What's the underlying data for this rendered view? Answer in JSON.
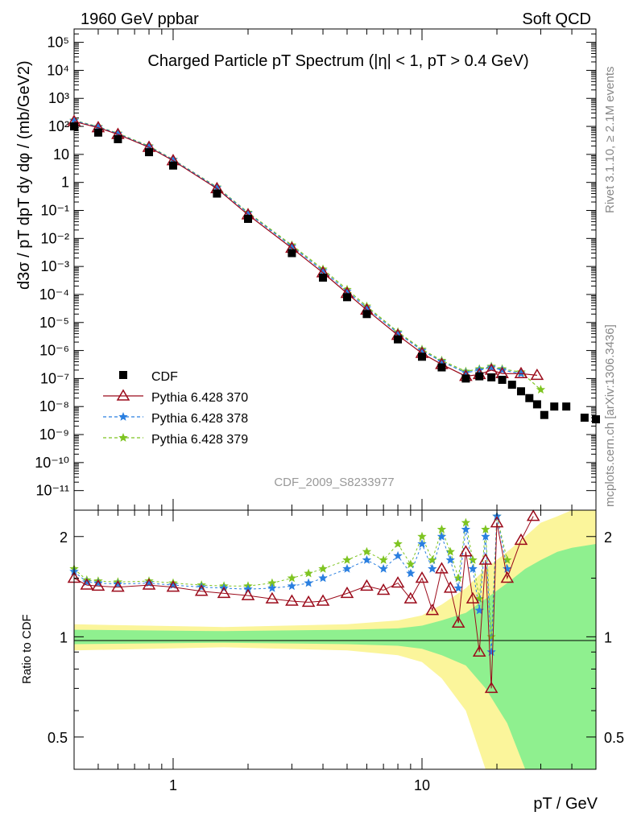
{
  "header": {
    "left": "1960 GeV ppbar",
    "right": "Soft QCD"
  },
  "side_text": {
    "rivet": "Rivet 3.1.10, ≥ 2.1M events",
    "mcplots": "mcplots.cern.ch [arXiv:1306.3436]"
  },
  "analysis_id": "CDF_2009_S8233977",
  "legend": [
    {
      "name": "CDF",
      "color": "#000000",
      "marker": "square"
    },
    {
      "name": "Pythia 6.428 370",
      "color": "#9b0a1a",
      "marker": "triangle"
    },
    {
      "name": "Pythia 6.428 378",
      "color": "#2a7fe0",
      "marker": "star"
    },
    {
      "name": "Pythia 6.428 379",
      "color": "#7ec421",
      "marker": "star"
    }
  ],
  "chart_data": [
    {
      "type": "scatter",
      "title": "Charged Particle pT Spectrum (|η| < 1, pT > 0.4 GeV)",
      "xlabel": "pT / GeV",
      "ylabel": "d3σ / pT dpT dy dφ / (mb/GeV2)",
      "xscale": "log",
      "yscale": "log",
      "xlim": [
        0.4,
        50
      ],
      "ylim": [
        2e-12,
        300000.0
      ],
      "yticks": [
        "10⁻¹¹",
        "10⁻¹⁰",
        "10⁻⁹",
        "10⁻⁸",
        "10⁻⁷",
        "10⁻⁶",
        "10⁻⁵",
        "10⁻⁴",
        "10⁻³",
        "10⁻²",
        "10⁻¹",
        "1",
        "10",
        "10²",
        "10³",
        "10⁴",
        "10⁵"
      ],
      "legend_position": "bottom-left",
      "series": [
        {
          "name": "CDF",
          "color": "#000000",
          "x": [
            0.4,
            0.5,
            0.6,
            0.8,
            1.0,
            1.5,
            2.0,
            3.0,
            4.0,
            5.0,
            6.0,
            8.0,
            10.0,
            12.0,
            15.0,
            17.0,
            19.0,
            21.0,
            23.0,
            25.0,
            27.0,
            29.0,
            31.0,
            34.0,
            38.0,
            45.0,
            50.0
          ],
          "y": [
            100,
            60,
            35,
            12,
            4,
            0.4,
            0.05,
            0.003,
            0.0004,
            8e-05,
            2e-05,
            2.5e-06,
            6e-07,
            2.5e-07,
            1e-07,
            1.2e-07,
            1.1e-07,
            9e-08,
            6e-08,
            3.5e-08,
            2e-08,
            1.2e-08,
            5e-09,
            1e-08,
            1e-08,
            4e-09,
            3.5e-09
          ]
        },
        {
          "name": "Pythia 6.428 370",
          "color": "#9b0a1a",
          "x": [
            0.4,
            0.5,
            0.6,
            0.8,
            1.0,
            1.5,
            2.0,
            3.0,
            4.0,
            5.0,
            6.0,
            8.0,
            10.0,
            12.0,
            15.0,
            17.0,
            19.0,
            21.0,
            25.0,
            29.0
          ],
          "y": [
            150,
            90,
            52,
            18,
            6,
            0.6,
            0.07,
            0.0045,
            0.0006,
            0.00011,
            2.8e-05,
            3.5e-06,
            8e-07,
            3.2e-07,
            1.2e-07,
            1.4e-07,
            2e-07,
            1.5e-07,
            1.5e-07,
            1.3e-07
          ]
        },
        {
          "name": "Pythia 6.428 378",
          "color": "#2a7fe0",
          "x": [
            0.4,
            0.5,
            0.6,
            0.8,
            1.0,
            1.5,
            2.0,
            3.0,
            4.0,
            5.0,
            6.0,
            8.0,
            10.0,
            12.0,
            15.0,
            17.0,
            19.0,
            21.0,
            25.0
          ],
          "y": [
            160,
            95,
            55,
            19,
            6.4,
            0.65,
            0.08,
            0.0052,
            0.0007,
            0.00013,
            3.3e-05,
            4.2e-06,
            1e-06,
            4e-07,
            1.6e-07,
            2e-07,
            2.5e-07,
            2e-07,
            1.5e-07
          ]
        },
        {
          "name": "Pythia 6.428 379",
          "color": "#7ec421",
          "x": [
            0.4,
            0.5,
            0.6,
            0.8,
            1.0,
            1.5,
            2.0,
            3.0,
            4.0,
            5.0,
            6.0,
            8.0,
            10.0,
            12.0,
            15.0,
            17.0,
            19.0,
            21.0,
            25.0,
            30.0
          ],
          "y": [
            165,
            98,
            57,
            20,
            6.6,
            0.68,
            0.085,
            0.0058,
            0.0008,
            0.00015,
            3.8e-05,
            4.6e-06,
            1.1e-06,
            4.4e-07,
            1.8e-07,
            2.2e-07,
            2.7e-07,
            2.2e-07,
            1.7e-07,
            4e-08
          ]
        }
      ]
    },
    {
      "type": "scatter",
      "ylabel": "Ratio to CDF",
      "xlabel": "pT / GeV",
      "xscale": "log",
      "yscale": "log",
      "xlim": [
        0.4,
        50
      ],
      "ylim": [
        0.4,
        2.4
      ],
      "yticks": [
        "0.5",
        "1",
        "2"
      ],
      "xticks": [
        "1",
        "10"
      ],
      "reference_line": 1,
      "bands": {
        "x": [
          0.4,
          1.6,
          5.0,
          8.0,
          10.0,
          12.0,
          15.0,
          18.0,
          22.0,
          26.0,
          30.0,
          35.0,
          40.0,
          50.0
        ],
        "inner_half_width": [
          0.05,
          0.04,
          0.05,
          0.06,
          0.08,
          0.12,
          0.18,
          0.3,
          0.45,
          0.6,
          0.7,
          0.8,
          0.85,
          0.9
        ],
        "outer_half_width": [
          0.09,
          0.07,
          0.09,
          0.12,
          0.16,
          0.25,
          0.4,
          0.6,
          0.8,
          1.0,
          1.2,
          1.3,
          1.4,
          1.5
        ],
        "inner_color": "#8ff08f",
        "outer_color": "#fbf59b"
      },
      "series": [
        {
          "name": "Pythia 6.428 370",
          "color": "#9b0a1a",
          "x": [
            0.4,
            0.45,
            0.5,
            0.6,
            0.8,
            1.0,
            1.3,
            1.6,
            2.0,
            2.5,
            3.0,
            3.5,
            4.0,
            5.0,
            6.0,
            7.0,
            8.0,
            9.0,
            10.0,
            11.0,
            12.0,
            13.0,
            14.0,
            15.0,
            16.0,
            17.0,
            18.0,
            19.0,
            20.0,
            22.0,
            25.0,
            28.0
          ],
          "y": [
            1.5,
            1.43,
            1.42,
            1.41,
            1.43,
            1.41,
            1.37,
            1.35,
            1.33,
            1.3,
            1.28,
            1.27,
            1.28,
            1.35,
            1.42,
            1.38,
            1.45,
            1.3,
            1.5,
            1.2,
            1.6,
            1.4,
            1.1,
            1.8,
            1.3,
            0.9,
            1.7,
            0.7,
            2.2,
            1.5,
            1.95,
            2.3
          ]
        },
        {
          "name": "Pythia 6.428 378",
          "color": "#2a7fe0",
          "x": [
            0.4,
            0.45,
            0.5,
            0.6,
            0.8,
            1.0,
            1.3,
            1.6,
            2.0,
            2.5,
            3.0,
            3.5,
            4.0,
            5.0,
            6.0,
            7.0,
            8.0,
            9.0,
            10.0,
            11.0,
            12.0,
            13.0,
            14.0,
            15.0,
            16.0,
            17.0,
            18.0,
            19.0,
            20.0,
            22.0
          ],
          "y": [
            1.57,
            1.46,
            1.45,
            1.44,
            1.45,
            1.43,
            1.41,
            1.4,
            1.39,
            1.4,
            1.42,
            1.45,
            1.5,
            1.6,
            1.7,
            1.6,
            1.75,
            1.55,
            1.9,
            1.6,
            2.0,
            1.7,
            1.4,
            2.1,
            1.6,
            1.2,
            2.0,
            0.9,
            2.3,
            1.6
          ]
        },
        {
          "name": "Pythia 6.428 379",
          "color": "#7ec421",
          "x": [
            0.4,
            0.45,
            0.5,
            0.6,
            0.8,
            1.0,
            1.3,
            1.6,
            2.0,
            2.5,
            3.0,
            3.5,
            4.0,
            5.0,
            6.0,
            7.0,
            8.0,
            9.0,
            10.0,
            11.0,
            12.0,
            13.0,
            14.0,
            15.0,
            16.0,
            17.0,
            18.0,
            19.0,
            20.0,
            22.0
          ],
          "y": [
            1.6,
            1.48,
            1.47,
            1.46,
            1.47,
            1.45,
            1.43,
            1.42,
            1.42,
            1.45,
            1.5,
            1.55,
            1.6,
            1.7,
            1.8,
            1.7,
            1.9,
            1.65,
            2.0,
            1.7,
            2.1,
            1.8,
            1.5,
            2.2,
            1.7,
            1.3,
            2.1,
            1.0,
            2.3,
            1.7
          ]
        }
      ]
    }
  ]
}
